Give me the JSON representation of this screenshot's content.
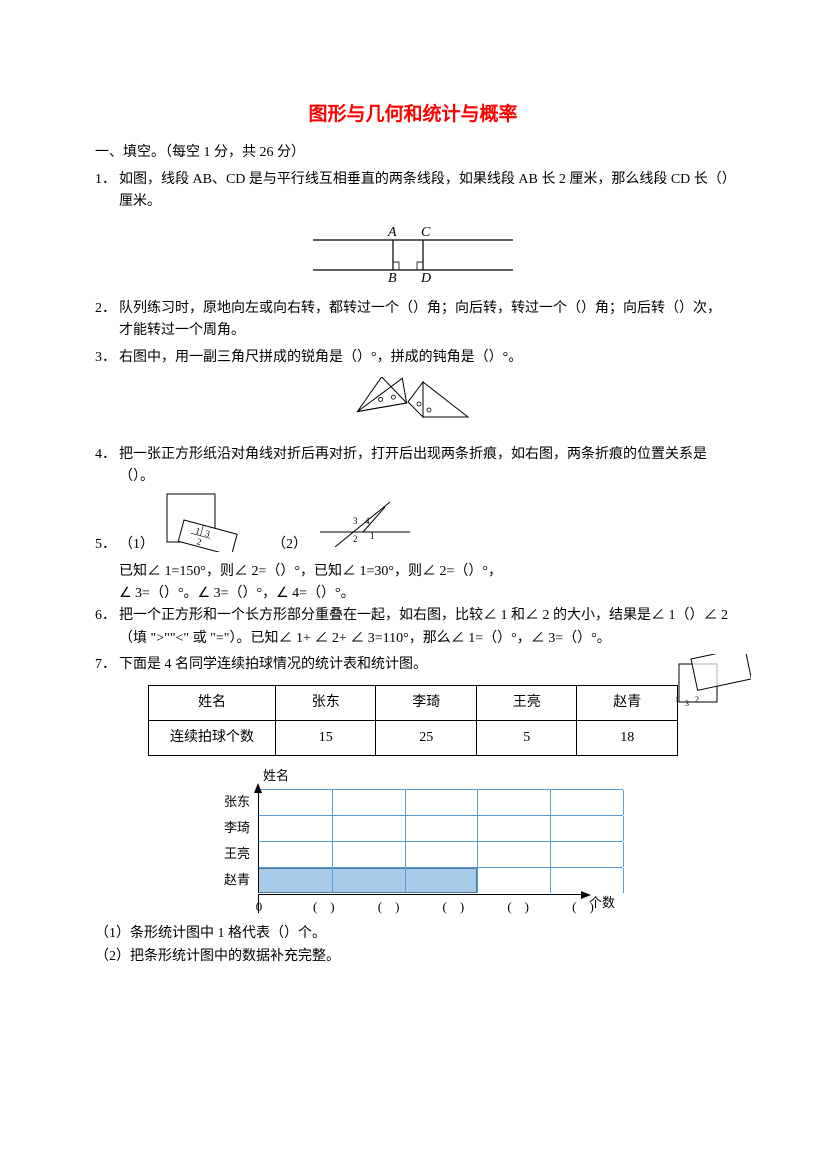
{
  "title": "图形与几何和统计与概率",
  "section1": "一、填空。（每空 1 分，共 26 分）",
  "q1": {
    "num": "1．",
    "text": "如图，线段 AB、CD 是与平行线互相垂直的两条线段，如果线段 AB 长 2 厘米，那么线段 CD 长（）厘米。",
    "labels": {
      "A": "A",
      "B": "B",
      "C": "C",
      "D": "D"
    }
  },
  "q2": {
    "num": "2．",
    "text": "队列练习时，原地向左或向右转，都转过一个（）角；向后转，转过一个（）角；向后转（）次，才能转过一个周角。"
  },
  "q3": {
    "num": "3．",
    "text": "右图中，用一副三角尺拼成的锐角是（）°，拼成的钝角是（）°。"
  },
  "q4": {
    "num": "4．",
    "text": "把一张正方形纸沿对角线对折后再对折，打开后出现两条折痕，如右图，两条折痕的位置关系是（）。"
  },
  "q5": {
    "num": "5．",
    "sub1": "（1）",
    "sub2": "（2）",
    "line1": "已知∠ 1=150°，则∠ 2=（）°，已知∠ 1=30°，则∠ 2=（）°，",
    "line2": "∠ 3=（）°。∠ 3=（）°，∠ 4=（）°。"
  },
  "q6": {
    "num": "6．",
    "text": "把一个正方形和一个长方形部分重叠在一起，如右图，比较∠ 1 和∠ 2 的大小，结果是∠ 1（）∠ 2（填 \">\"\"<\" 或 \"=\"）。已知∠ 1+ ∠ 2+ ∠ 3=110°，那么∠ 1=（）°，∠ 3=（）°。"
  },
  "q7": {
    "num": "7．",
    "text": "下面是 4 名同学连续拍球情况的统计表和统计图。",
    "table": {
      "headers": [
        "姓名",
        "张东",
        "李琦",
        "王亮",
        "赵青"
      ],
      "row_label": "连续拍球个数",
      "values": [
        "15",
        "25",
        "5",
        "18"
      ]
    },
    "chart": {
      "y_title": "姓名",
      "x_title": "个数",
      "names": [
        "张东",
        "李琦",
        "王亮",
        "赵青"
      ],
      "bar_fills": [
        0,
        0,
        0,
        60
      ],
      "ticks": [
        "0",
        "(　)",
        "(　)",
        "(　)",
        "(　)",
        "(　)"
      ],
      "bar_bg": "#a8cbe8",
      "grid_color": "#5b9bd5"
    },
    "sub1": "（1）条形统计图中 1 格代表（）个。",
    "sub2": "（2）把条形统计图中的数据补充完整。"
  }
}
